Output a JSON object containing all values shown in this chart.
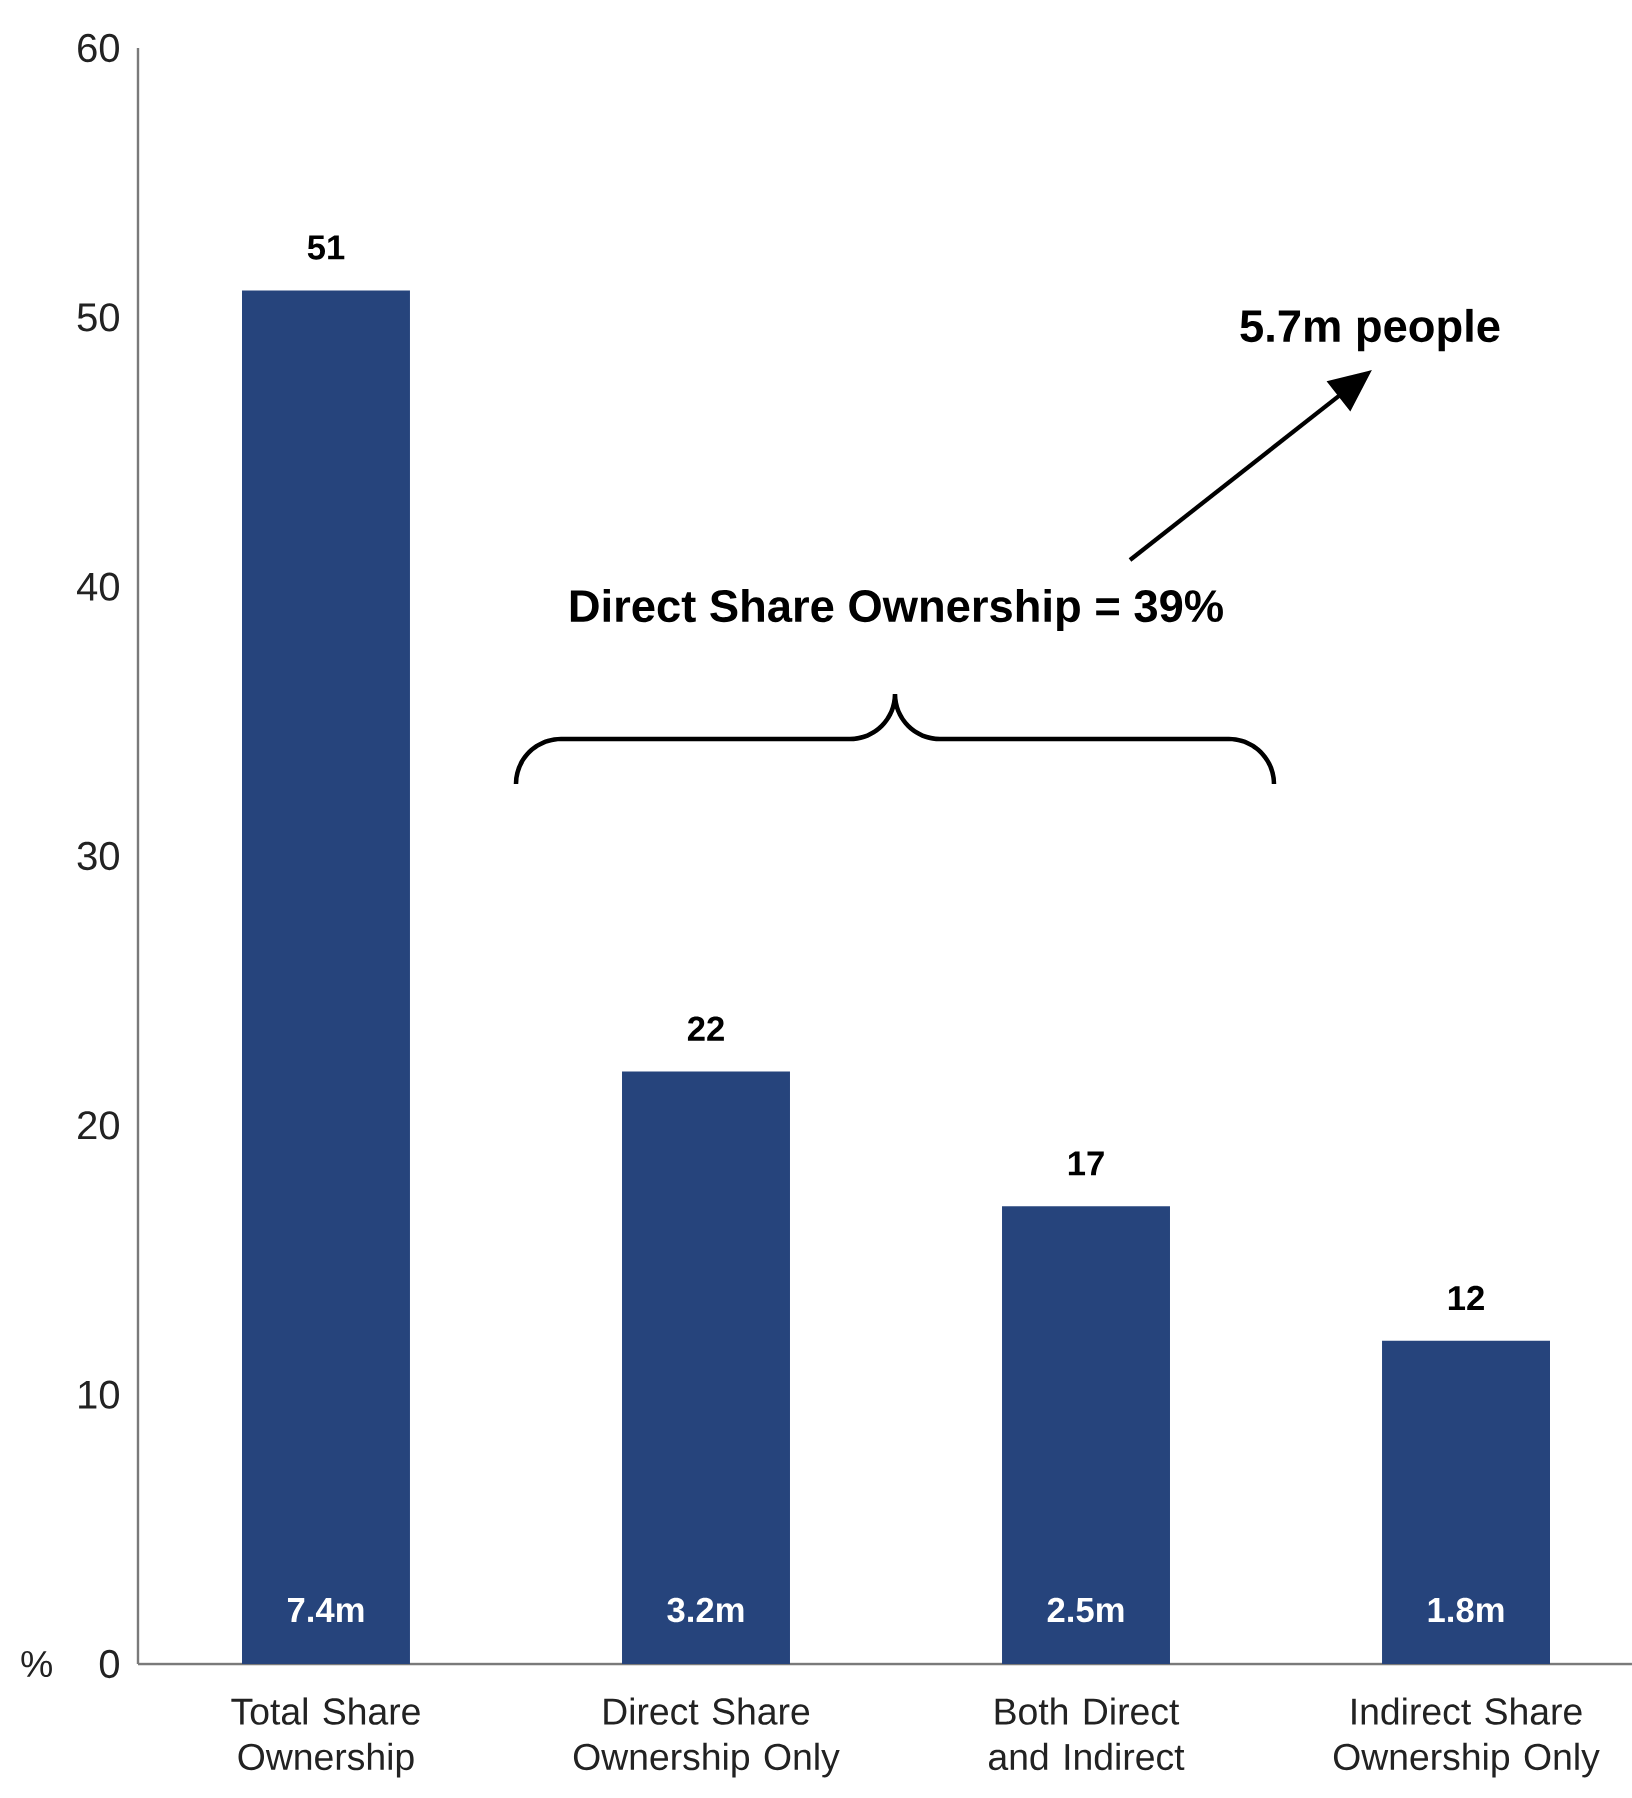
{
  "chart_data": {
    "type": "bar",
    "categories": [
      "Total Share Ownership",
      "Direct Share Ownership Only",
      "Both Direct and Indirect",
      "Indirect Share Ownership Only"
    ],
    "values": [
      51,
      22,
      17,
      12
    ],
    "color": "#26447c",
    "ylabel": "%",
    "ylim": [
      0,
      60
    ],
    "yticks": [
      0,
      10,
      20,
      30,
      40,
      50,
      60
    ],
    "data_labels": true,
    "annotations": [
      "Direct Share Ownership = 39%",
      "5.7m people",
      "7.4m",
      "3.2m",
      "2.5m",
      "1.8m"
    ]
  }
}
